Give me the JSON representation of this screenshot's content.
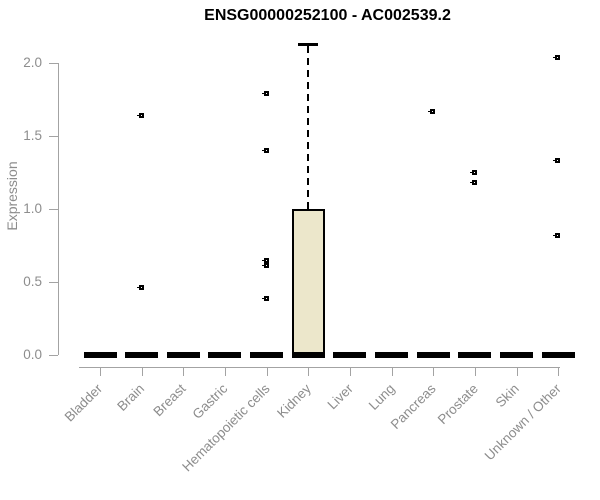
{
  "title": "ENSG00000252100 - AC002539.2",
  "chart_data": {
    "type": "box",
    "title": "ENSG00000252100 - AC002539.2",
    "xlabel": "",
    "ylabel": "Expression",
    "ylim": [
      0,
      2.15
    ],
    "grid": false,
    "legend": null,
    "y_ticks": [
      0.0,
      0.5,
      1.0,
      1.5,
      2.0
    ],
    "y_tick_labels": [
      "0.0",
      "0.5",
      "1.0",
      "1.5",
      "2.0"
    ],
    "categories": [
      "Bladder",
      "Brain",
      "Breast",
      "Gastric",
      "Hematopoietic cells",
      "Kidney",
      "Liver",
      "Lung",
      "Pancreas",
      "Prostate",
      "Skin",
      "Unknown / Other"
    ],
    "boxes": [
      {
        "category": "Bladder",
        "median": 0,
        "q1": 0,
        "q3": 0,
        "whisker_low": 0,
        "whisker_high": 0,
        "outliers": []
      },
      {
        "category": "Brain",
        "median": 0,
        "q1": 0,
        "q3": 0,
        "whisker_low": 0,
        "whisker_high": 0,
        "outliers": [
          1.64,
          0.46
        ]
      },
      {
        "category": "Breast",
        "median": 0,
        "q1": 0,
        "q3": 0,
        "whisker_low": 0,
        "whisker_high": 0,
        "outliers": []
      },
      {
        "category": "Gastric",
        "median": 0,
        "q1": 0,
        "q3": 0,
        "whisker_low": 0,
        "whisker_high": 0,
        "outliers": []
      },
      {
        "category": "Hematopoietic cells",
        "median": 0,
        "q1": 0,
        "q3": 0,
        "whisker_low": 0,
        "whisker_high": 0,
        "outliers": [
          1.79,
          1.4,
          0.65,
          0.61,
          0.39
        ]
      },
      {
        "category": "Kidney",
        "median": 0,
        "q1": 0,
        "q3": 1.0,
        "whisker_low": 0,
        "whisker_high": 2.13,
        "outliers": []
      },
      {
        "category": "Liver",
        "median": 0,
        "q1": 0,
        "q3": 0,
        "whisker_low": 0,
        "whisker_high": 0,
        "outliers": []
      },
      {
        "category": "Lung",
        "median": 0,
        "q1": 0,
        "q3": 0,
        "whisker_low": 0,
        "whisker_high": 0,
        "outliers": []
      },
      {
        "category": "Pancreas",
        "median": 0,
        "q1": 0,
        "q3": 0,
        "whisker_low": 0,
        "whisker_high": 0,
        "outliers": [
          1.67
        ]
      },
      {
        "category": "Prostate",
        "median": 0,
        "q1": 0,
        "q3": 0,
        "whisker_low": 0,
        "whisker_high": 0,
        "outliers": [
          1.25,
          1.18
        ]
      },
      {
        "category": "Skin",
        "median": 0,
        "q1": 0,
        "q3": 0,
        "whisker_low": 0,
        "whisker_high": 0,
        "outliers": []
      },
      {
        "category": "Unknown / Other",
        "median": 0,
        "q1": 0,
        "q3": 0,
        "whisker_low": 0,
        "whisker_high": 0,
        "outliers": [
          2.04,
          1.33,
          0.82
        ]
      }
    ],
    "colors": {
      "box_fill": "#ece7cb",
      "box_border": "#000000",
      "median": "#000000",
      "outlier": "#000000",
      "axis_line": "#a3a3a3",
      "axis_text": "#8d8d8d",
      "title_text": "#000000",
      "background": "#ffffff"
    }
  }
}
